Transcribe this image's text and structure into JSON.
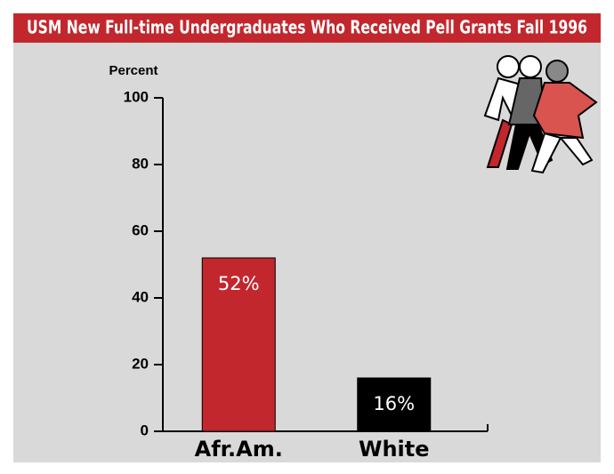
{
  "chart_data": {
    "type": "bar",
    "title": "USM New Full-time Undergraduates Who Received Pell Grants Fall 1996",
    "y_label": "Percent",
    "categories": [
      "Afr.Am.",
      "White"
    ],
    "values": [
      52,
      16
    ],
    "value_labels": [
      "52%",
      "16%"
    ],
    "colors": [
      "#c1272d",
      "#000000"
    ],
    "ylim": [
      0,
      100
    ],
    "yticks": [
      0,
      20,
      40,
      60,
      80,
      100
    ]
  }
}
